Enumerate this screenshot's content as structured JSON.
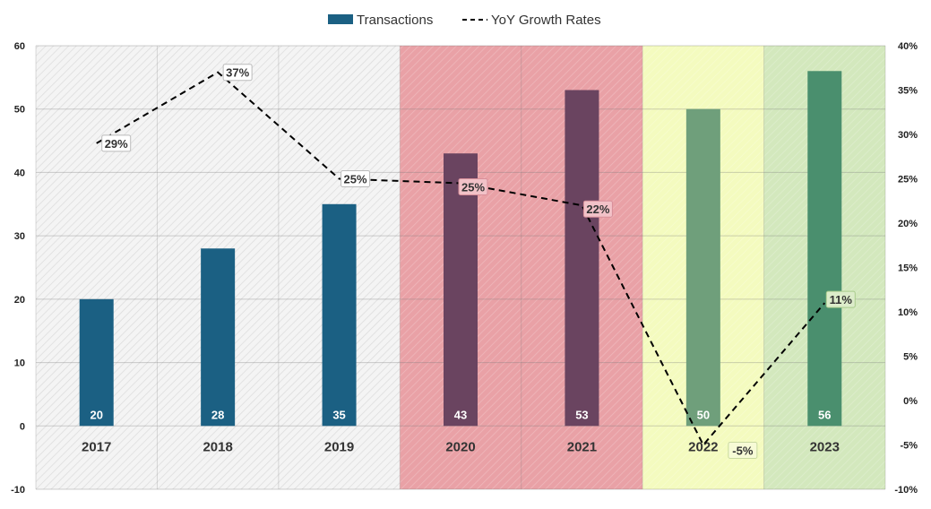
{
  "chart_data": {
    "type": "bar",
    "categories": [
      "2017",
      "2018",
      "2019",
      "2020",
      "2021",
      "2022",
      "2023"
    ],
    "series": [
      {
        "name": "Transactions",
        "type": "bar",
        "axis": "left",
        "values": [
          20,
          28,
          35,
          43,
          53,
          50,
          56
        ],
        "labels": [
          "20",
          "28",
          "35",
          "43",
          "53",
          "50",
          "56"
        ],
        "colors": [
          "#1b6083",
          "#1b6083",
          "#1b6083",
          "#6a4460",
          "#6a4460",
          "#6f9f7b",
          "#4a8f6e"
        ]
      },
      {
        "name": "YoY Growth Rates",
        "type": "line",
        "style": "dashed",
        "axis": "right",
        "values": [
          29,
          37,
          25,
          24.5,
          22,
          -5,
          11
        ],
        "labels": [
          "29%",
          "37%",
          "25%",
          "25%",
          "22%",
          "-5%",
          "11%"
        ],
        "color": "#000000"
      }
    ],
    "y_left": {
      "min": -10,
      "max": 60,
      "ticks": [
        "-10",
        "0",
        "10",
        "20",
        "30",
        "40",
        "50",
        "60"
      ]
    },
    "y_right": {
      "min": -10,
      "max": 40,
      "ticks": [
        "-10%",
        "-5%",
        "0%",
        "5%",
        "10%",
        "15%",
        "20%",
        "25%",
        "30%",
        "35%",
        "40%"
      ]
    },
    "bands": [
      {
        "from": "2017",
        "to": "2019",
        "color": "#f2f2f2",
        "pattern": "hatch"
      },
      {
        "from": "2020",
        "to": "2021",
        "color": "#e9a1a6"
      },
      {
        "from": "2022",
        "to": "2022",
        "color": "#f4fbbf"
      },
      {
        "from": "2023",
        "to": "2023",
        "color": "#d3e8bd"
      }
    ],
    "legend": {
      "position": "top-center"
    },
    "grid": true
  }
}
